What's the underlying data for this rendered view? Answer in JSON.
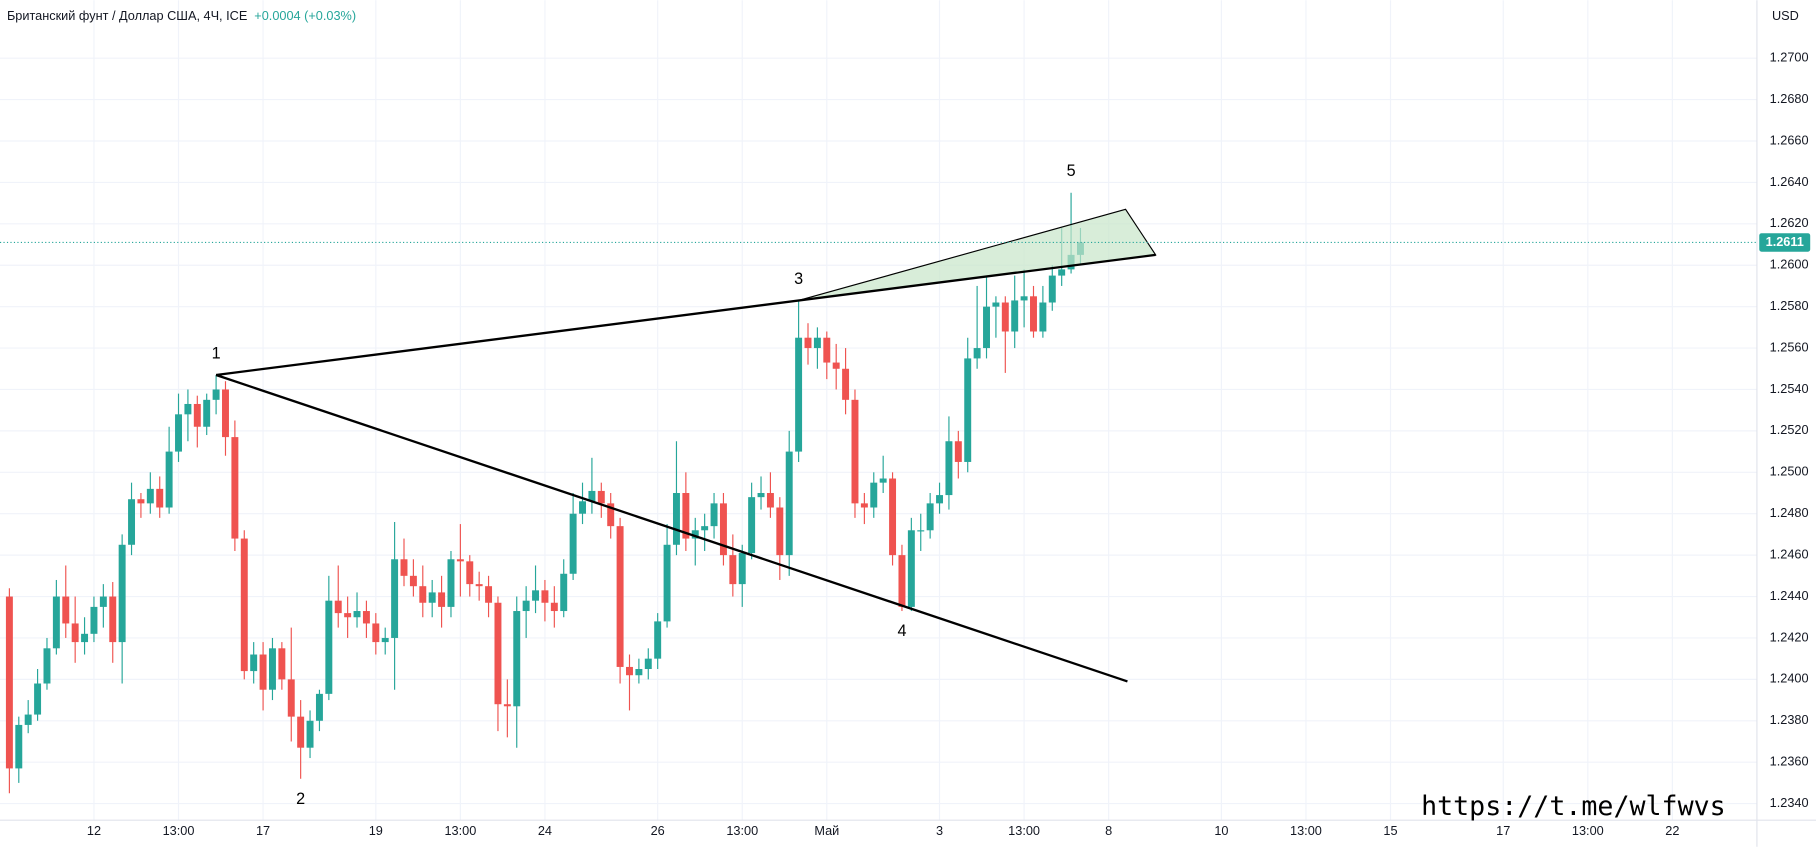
{
  "chart_data": {
    "type": "candlestick",
    "title": "Британский фунт / Доллар США, 4Ч, ICE",
    "change": "+0.0004 (+0.03%)",
    "currency": "USD",
    "watermark": "https://t.me/wlfwvs",
    "up_color": "#26a69a",
    "down_color": "#ef5350",
    "grid": true,
    "last_price": 1.2611,
    "xlim": [
      -1,
      186
    ],
    "ylim": [
      1.2332,
      1.2728
    ],
    "yticks": [
      {
        "value": 1.234,
        "label": "1.2340"
      },
      {
        "value": 1.236,
        "label": "1.2360"
      },
      {
        "value": 1.238,
        "label": "1.2380"
      },
      {
        "value": 1.24,
        "label": "1.2400"
      },
      {
        "value": 1.242,
        "label": "1.2420"
      },
      {
        "value": 1.244,
        "label": "1.2440"
      },
      {
        "value": 1.246,
        "label": "1.2460"
      },
      {
        "value": 1.248,
        "label": "1.2480"
      },
      {
        "value": 1.25,
        "label": "1.2500"
      },
      {
        "value": 1.252,
        "label": "1.2520"
      },
      {
        "value": 1.254,
        "label": "1.2540"
      },
      {
        "value": 1.256,
        "label": "1.2560"
      },
      {
        "value": 1.258,
        "label": "1.2580"
      },
      {
        "value": 1.26,
        "label": "1.2600"
      },
      {
        "value": 1.262,
        "label": "1.2620"
      },
      {
        "value": 1.264,
        "label": "1.2640"
      },
      {
        "value": 1.266,
        "label": "1.2660"
      },
      {
        "value": 1.268,
        "label": "1.2680"
      },
      {
        "value": 1.27,
        "label": "1.2700"
      }
    ],
    "xticks": [
      {
        "value": 9,
        "label": "12"
      },
      {
        "value": 18,
        "label": "13:00"
      },
      {
        "value": 27,
        "label": "17"
      },
      {
        "value": 39,
        "label": "19"
      },
      {
        "value": 48,
        "label": "13:00"
      },
      {
        "value": 57,
        "label": "24"
      },
      {
        "value": 69,
        "label": "26"
      },
      {
        "value": 78,
        "label": "13:00"
      },
      {
        "value": 87,
        "label": "Май"
      },
      {
        "value": 99,
        "label": "3"
      },
      {
        "value": 108,
        "label": "13:00"
      },
      {
        "value": 117,
        "label": "8"
      },
      {
        "value": 129,
        "label": "10"
      },
      {
        "value": 138,
        "label": "13:00"
      },
      {
        "value": 147,
        "label": "15"
      },
      {
        "value": 159,
        "label": "17"
      },
      {
        "value": 168,
        "label": "13:00"
      },
      {
        "value": 177,
        "label": "22"
      }
    ],
    "ohlc": [
      [
        1.244,
        1.2444,
        1.2345,
        1.2357
      ],
      [
        1.2357,
        1.2382,
        1.235,
        1.2378
      ],
      [
        1.2378,
        1.239,
        1.2374,
        1.2383
      ],
      [
        1.2383,
        1.2405,
        1.238,
        1.2398
      ],
      [
        1.2398,
        1.242,
        1.2395,
        1.2415
      ],
      [
        1.2415,
        1.2448,
        1.2412,
        1.244
      ],
      [
        1.244,
        1.2455,
        1.242,
        1.2427
      ],
      [
        1.2427,
        1.244,
        1.2408,
        1.2418
      ],
      [
        1.2418,
        1.243,
        1.2412,
        1.2422
      ],
      [
        1.2422,
        1.244,
        1.2418,
        1.2435
      ],
      [
        1.2435,
        1.2446,
        1.2425,
        1.244
      ],
      [
        1.244,
        1.2447,
        1.2408,
        1.2418
      ],
      [
        1.2418,
        1.247,
        1.2398,
        1.2465
      ],
      [
        1.2465,
        1.2495,
        1.246,
        1.2487
      ],
      [
        1.2487,
        1.249,
        1.2478,
        1.2485
      ],
      [
        1.2485,
        1.25,
        1.248,
        1.2492
      ],
      [
        1.2492,
        1.2498,
        1.2478,
        1.2483
      ],
      [
        1.2483,
        1.2522,
        1.248,
        1.251
      ],
      [
        1.251,
        1.2538,
        1.2505,
        1.2528
      ],
      [
        1.2528,
        1.254,
        1.2515,
        1.2533
      ],
      [
        1.2533,
        1.2537,
        1.2512,
        1.2522
      ],
      [
        1.2522,
        1.2538,
        1.2518,
        1.2535
      ],
      [
        1.2535,
        1.2547,
        1.2528,
        1.254
      ],
      [
        1.254,
        1.2544,
        1.2508,
        1.2517
      ],
      [
        1.2517,
        1.2525,
        1.2462,
        1.2468
      ],
      [
        1.2468,
        1.2472,
        1.24,
        1.2404
      ],
      [
        1.2404,
        1.2418,
        1.2398,
        1.2412
      ],
      [
        1.2412,
        1.2418,
        1.2385,
        1.2395
      ],
      [
        1.2395,
        1.242,
        1.239,
        1.2415
      ],
      [
        1.2415,
        1.2418,
        1.2395,
        1.24
      ],
      [
        1.24,
        1.2425,
        1.237,
        1.2382
      ],
      [
        1.2382,
        1.239,
        1.2352,
        1.2367
      ],
      [
        1.2367,
        1.2385,
        1.2362,
        1.238
      ],
      [
        1.238,
        1.2395,
        1.2375,
        1.2393
      ],
      [
        1.2393,
        1.245,
        1.239,
        1.2438
      ],
      [
        1.2438,
        1.2455,
        1.2425,
        1.2432
      ],
      [
        1.2432,
        1.244,
        1.242,
        1.243
      ],
      [
        1.243,
        1.2442,
        1.2425,
        1.2433
      ],
      [
        1.2433,
        1.2438,
        1.242,
        1.2427
      ],
      [
        1.2427,
        1.2432,
        1.2412,
        1.2418
      ],
      [
        1.2418,
        1.2425,
        1.2412,
        1.242
      ],
      [
        1.242,
        1.2476,
        1.2395,
        1.2458
      ],
      [
        1.2458,
        1.2468,
        1.2445,
        1.245
      ],
      [
        1.245,
        1.2458,
        1.244,
        1.2445
      ],
      [
        1.2445,
        1.2455,
        1.243,
        1.2437
      ],
      [
        1.2437,
        1.2448,
        1.243,
        1.2442
      ],
      [
        1.2442,
        1.245,
        1.2425,
        1.2435
      ],
      [
        1.2435,
        1.2462,
        1.243,
        1.2458
      ],
      [
        1.2458,
        1.2475,
        1.244,
        1.2457
      ],
      [
        1.2457,
        1.246,
        1.244,
        1.2446
      ],
      [
        1.2446,
        1.2452,
        1.2438,
        1.2445
      ],
      [
        1.2445,
        1.245,
        1.243,
        1.2437
      ],
      [
        1.2437,
        1.244,
        1.2375,
        1.2388
      ],
      [
        1.2388,
        1.24,
        1.2372,
        1.2387
      ],
      [
        1.2387,
        1.244,
        1.2367,
        1.2433
      ],
      [
        1.2433,
        1.2445,
        1.242,
        1.2438
      ],
      [
        1.2438,
        1.2455,
        1.2432,
        1.2443
      ],
      [
        1.2443,
        1.2448,
        1.2428,
        1.2437
      ],
      [
        1.2437,
        1.2445,
        1.2425,
        1.2433
      ],
      [
        1.2433,
        1.2458,
        1.243,
        1.2451
      ],
      [
        1.2451,
        1.249,
        1.2448,
        1.248
      ],
      [
        1.248,
        1.2495,
        1.2475,
        1.2486
      ],
      [
        1.2486,
        1.2507,
        1.248,
        1.2491
      ],
      [
        1.2491,
        1.2495,
        1.2478,
        1.2485
      ],
      [
        1.2485,
        1.249,
        1.2468,
        1.2474
      ],
      [
        1.2474,
        1.2478,
        1.2398,
        1.2406
      ],
      [
        1.2406,
        1.2412,
        1.2385,
        1.2402
      ],
      [
        1.2402,
        1.241,
        1.2398,
        1.2405
      ],
      [
        1.2405,
        1.2415,
        1.24,
        1.241
      ],
      [
        1.241,
        1.2432,
        1.2405,
        1.2428
      ],
      [
        1.2428,
        1.2475,
        1.2425,
        1.2465
      ],
      [
        1.2465,
        1.2515,
        1.246,
        1.249
      ],
      [
        1.249,
        1.25,
        1.2462,
        1.2468
      ],
      [
        1.2468,
        1.2478,
        1.2455,
        1.2472
      ],
      [
        1.2472,
        1.248,
        1.2462,
        1.2474
      ],
      [
        1.2474,
        1.249,
        1.2468,
        1.2485
      ],
      [
        1.2485,
        1.249,
        1.2455,
        1.246
      ],
      [
        1.246,
        1.247,
        1.244,
        1.2446
      ],
      [
        1.2446,
        1.2465,
        1.2435,
        1.2461
      ],
      [
        1.2461,
        1.2495,
        1.2458,
        1.2488
      ],
      [
        1.2488,
        1.2498,
        1.2482,
        1.249
      ],
      [
        1.249,
        1.25,
        1.2478,
        1.2483
      ],
      [
        1.2483,
        1.2488,
        1.2448,
        1.246
      ],
      [
        1.246,
        1.252,
        1.245,
        1.251
      ],
      [
        1.251,
        1.2583,
        1.2505,
        1.2565
      ],
      [
        1.2565,
        1.2572,
        1.2552,
        1.256
      ],
      [
        1.256,
        1.257,
        1.255,
        1.2565
      ],
      [
        1.2565,
        1.2568,
        1.2545,
        1.2553
      ],
      [
        1.2553,
        1.2562,
        1.254,
        1.255
      ],
      [
        1.255,
        1.256,
        1.2528,
        1.2535
      ],
      [
        1.2535,
        1.254,
        1.2478,
        1.2485
      ],
      [
        1.2485,
        1.249,
        1.2475,
        1.2483
      ],
      [
        1.2483,
        1.25,
        1.2478,
        1.2495
      ],
      [
        1.2495,
        1.2508,
        1.249,
        1.2497
      ],
      [
        1.2497,
        1.25,
        1.2455,
        1.246
      ],
      [
        1.246,
        1.2465,
        1.2433,
        1.2435
      ],
      [
        1.2435,
        1.2478,
        1.2433,
        1.2472
      ],
      [
        1.2472,
        1.248,
        1.2462,
        1.2472
      ],
      [
        1.2472,
        1.249,
        1.2468,
        1.2485
      ],
      [
        1.2485,
        1.2495,
        1.248,
        1.2489
      ],
      [
        1.2489,
        1.2527,
        1.2482,
        1.2515
      ],
      [
        1.2515,
        1.252,
        1.2497,
        1.2505
      ],
      [
        1.2505,
        1.2565,
        1.25,
        1.2555
      ],
      [
        1.2555,
        1.259,
        1.255,
        1.256
      ],
      [
        1.256,
        1.2595,
        1.2555,
        1.258
      ],
      [
        1.258,
        1.2585,
        1.2565,
        1.2582
      ],
      [
        1.2582,
        1.2585,
        1.2548,
        1.2568
      ],
      [
        1.2568,
        1.2595,
        1.256,
        1.2583
      ],
      [
        1.2583,
        1.2598,
        1.257,
        1.2585
      ],
      [
        1.2585,
        1.259,
        1.2565,
        1.2568
      ],
      [
        1.2568,
        1.259,
        1.2565,
        1.2582
      ],
      [
        1.2582,
        1.26,
        1.2578,
        1.2595
      ],
      [
        1.2595,
        1.2618,
        1.259,
        1.2598
      ],
      [
        1.2598,
        1.2635,
        1.2596,
        1.2605
      ],
      [
        1.2605,
        1.2618,
        1.26,
        1.2611
      ]
    ],
    "trendlines": [
      {
        "points": [
          [
            22,
            1.2547
          ],
          [
            122,
            1.2605
          ]
        ]
      },
      {
        "points": [
          [
            22,
            1.2547
          ],
          [
            119,
            1.2399
          ]
        ]
      }
    ],
    "triangle": {
      "color": "#c8e6c9",
      "points": [
        [
          84,
          1.2583
        ],
        [
          118.8,
          1.2627
        ],
        [
          122,
          1.2605
        ]
      ]
    },
    "waves": [
      {
        "label": "1",
        "x": 22,
        "price": 1.2547,
        "position": "above"
      },
      {
        "label": "2",
        "x": 31,
        "price": 1.2352,
        "position": "below"
      },
      {
        "label": "3",
        "x": 84,
        "price": 1.2583,
        "position": "above"
      },
      {
        "label": "4",
        "x": 95,
        "price": 1.2433,
        "position": "below"
      },
      {
        "label": "5",
        "x": 113,
        "price": 1.2635,
        "position": "above"
      }
    ]
  }
}
